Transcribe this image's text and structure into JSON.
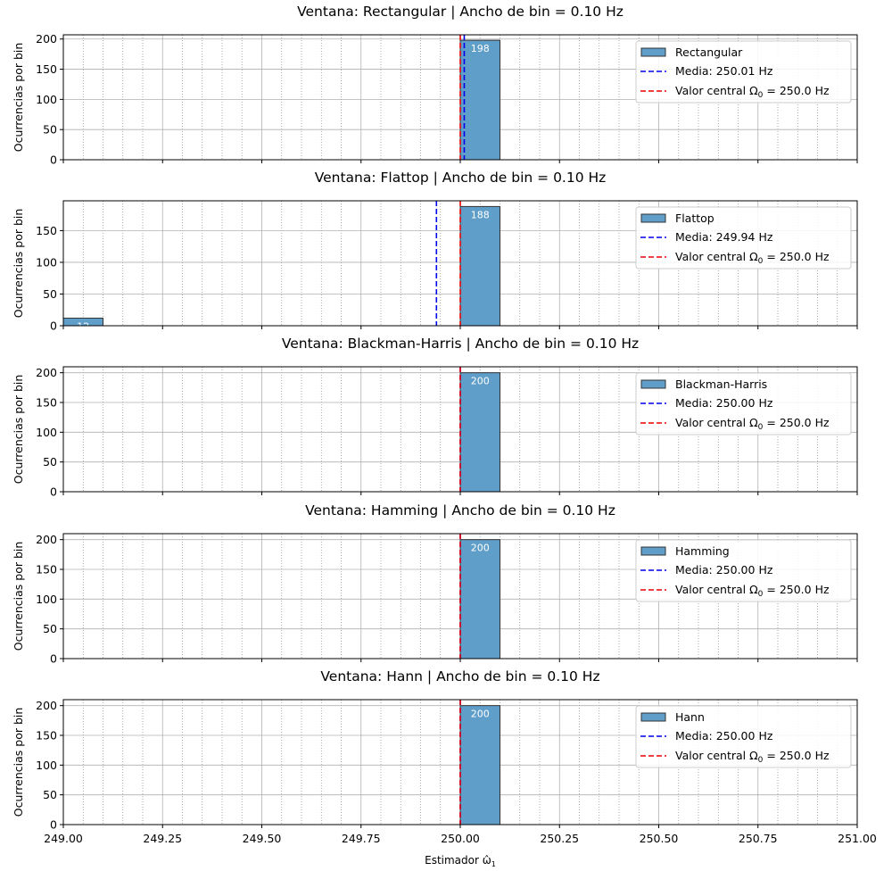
{
  "chart_data": {
    "type": "bar",
    "xlabel": "Estimador ω̂",
    "xlabel_sub": "1",
    "xlim": [
      249.0,
      251.0
    ],
    "xticks": [
      249.0,
      249.25,
      249.5,
      249.75,
      250.0,
      250.25,
      250.5,
      250.75,
      251.0
    ],
    "xtick_labels": [
      "249.00",
      "249.25",
      "249.50",
      "249.75",
      "250.00",
      "250.25",
      "250.50",
      "250.75",
      "251.00"
    ],
    "ylabel": "Ocurrencias por bin",
    "grid": "on",
    "legend_placement": "upper-right",
    "colors": {
      "bar": "#5f9ec9",
      "bar_edge": "#333333",
      "mean_line": "#0000ee",
      "center_line": "#ee0000",
      "grid_major": "#b0b0b0",
      "grid_minor": "#888888"
    },
    "bin_width": 0.1,
    "center_value": 250.0,
    "center_label_prefix": "Valor central ",
    "center_label_symbol": "Ω",
    "center_label_sub": "0",
    "center_label_value": " = 250.0 Hz",
    "panels": [
      {
        "title": "Ventana: Rectangular  |  Ancho de bin = 0.10 Hz",
        "series_name": "Rectangular",
        "bins": [
          {
            "start": 250.0,
            "end": 250.1,
            "count": 198,
            "label": "198"
          }
        ],
        "mean": 250.01,
        "mean_label": "Media: 250.01 Hz",
        "ylim": [
          0,
          207
        ],
        "yticks": [
          0,
          50,
          100,
          150,
          200
        ],
        "ytick_labels": [
          "0",
          "50",
          "100",
          "150",
          "200"
        ]
      },
      {
        "title": "Ventana: Flattop  |  Ancho de bin = 0.10 Hz",
        "series_name": "Flattop",
        "bins": [
          {
            "start": 249.0,
            "end": 249.1,
            "count": 12,
            "label": "12"
          },
          {
            "start": 250.0,
            "end": 250.1,
            "count": 188,
            "label": "188"
          }
        ],
        "mean": 249.94,
        "mean_label": "Media: 249.94 Hz",
        "ylim": [
          0,
          197
        ],
        "yticks": [
          0,
          50,
          100,
          150
        ],
        "ytick_labels": [
          "0",
          "50",
          "100",
          "150"
        ]
      },
      {
        "title": "Ventana: Blackman-Harris  |  Ancho de bin = 0.10 Hz",
        "series_name": "Blackman-Harris",
        "bins": [
          {
            "start": 250.0,
            "end": 250.1,
            "count": 200,
            "label": "200"
          }
        ],
        "mean": 250.0,
        "mean_label": "Media: 250.00 Hz",
        "ylim": [
          0,
          210
        ],
        "yticks": [
          0,
          50,
          100,
          150,
          200
        ],
        "ytick_labels": [
          "0",
          "50",
          "100",
          "150",
          "200"
        ]
      },
      {
        "title": "Ventana: Hamming  |  Ancho de bin = 0.10 Hz",
        "series_name": "Hamming",
        "bins": [
          {
            "start": 250.0,
            "end": 250.1,
            "count": 200,
            "label": "200"
          }
        ],
        "mean": 250.0,
        "mean_label": "Media: 250.00 Hz",
        "ylim": [
          0,
          210
        ],
        "yticks": [
          0,
          50,
          100,
          150,
          200
        ],
        "ytick_labels": [
          "0",
          "50",
          "100",
          "150",
          "200"
        ]
      },
      {
        "title": "Ventana: Hann  |  Ancho de bin = 0.10 Hz",
        "series_name": "Hann",
        "bins": [
          {
            "start": 250.0,
            "end": 250.1,
            "count": 200,
            "label": "200"
          }
        ],
        "mean": 250.0,
        "mean_label": "Media: 250.00 Hz",
        "ylim": [
          0,
          210
        ],
        "yticks": [
          0,
          50,
          100,
          150,
          200
        ],
        "ytick_labels": [
          "0",
          "50",
          "100",
          "150",
          "200"
        ]
      }
    ]
  }
}
